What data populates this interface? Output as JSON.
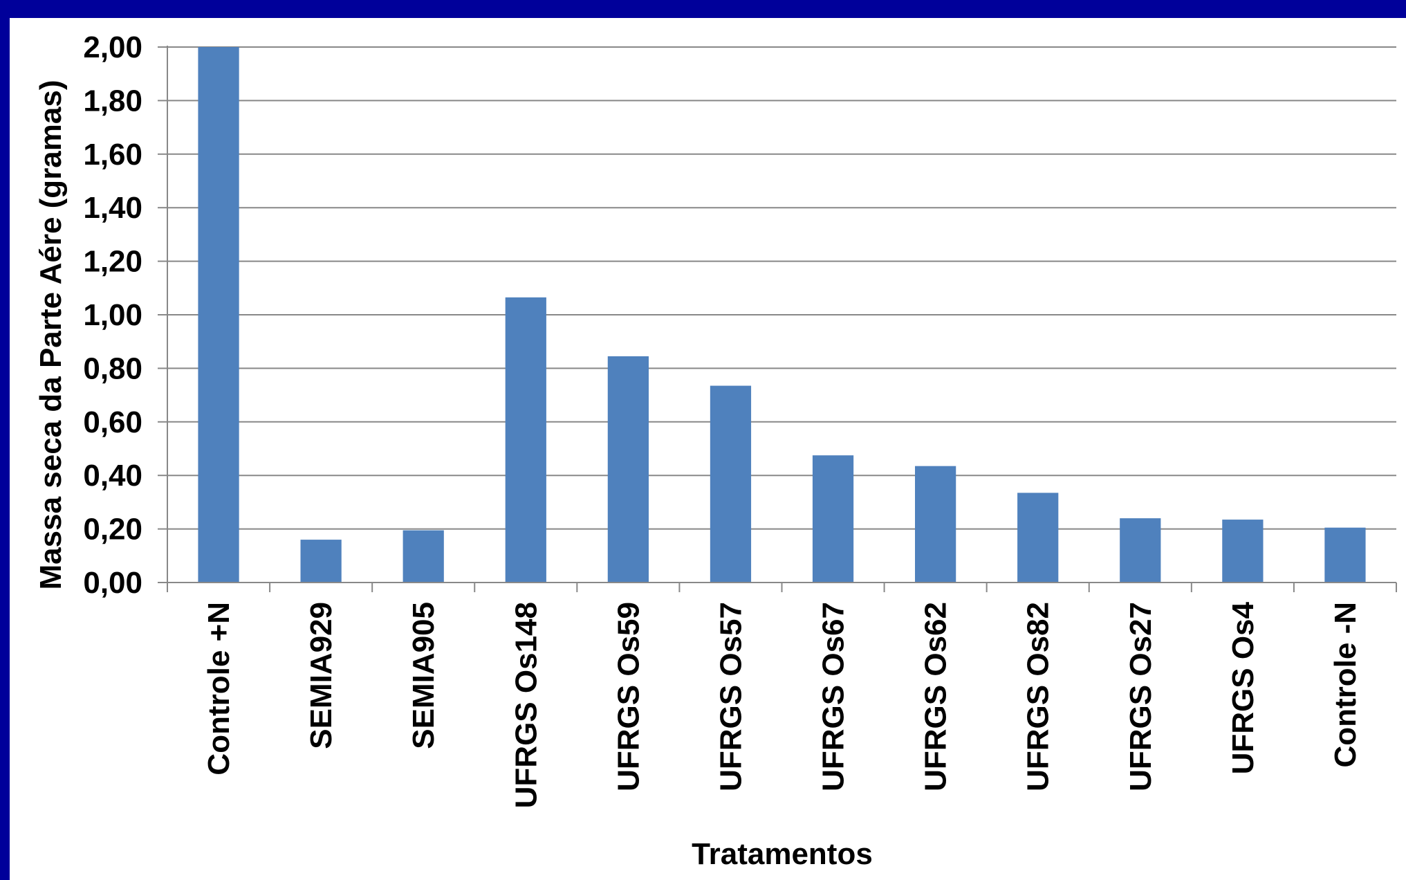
{
  "chart_data": {
    "type": "bar",
    "title": "",
    "xlabel": "Tratamentos",
    "ylabel": "Massa seca da Parte Aére  (gramas)",
    "ylim": [
      0,
      2.0
    ],
    "ytick_step": 0.2,
    "ytick_labels": [
      "0,00",
      "0,20",
      "0,40",
      "0,60",
      "0,80",
      "1,00",
      "1,20",
      "1,40",
      "1,60",
      "1,80",
      "2,00"
    ],
    "grid": true,
    "legend": "none",
    "categories": [
      "Controle +N",
      "SEMIA929",
      "SEMIA905",
      "UFRGS Os148",
      "UFRGS Os59",
      "UFRGS Os57",
      "UFRGS Os67",
      "UFRGS Os62",
      "UFRGS Os82",
      "UFRGS Os27",
      "UFRGS Os4",
      "Controle -N"
    ],
    "values": [
      2.0,
      0.16,
      0.195,
      1.065,
      0.845,
      0.735,
      0.475,
      0.435,
      0.335,
      0.24,
      0.235,
      0.205
    ],
    "colors": {
      "bar": "#4f81bd",
      "grid": "#888888",
      "background": "#ffffff",
      "border": "#00009a"
    }
  }
}
